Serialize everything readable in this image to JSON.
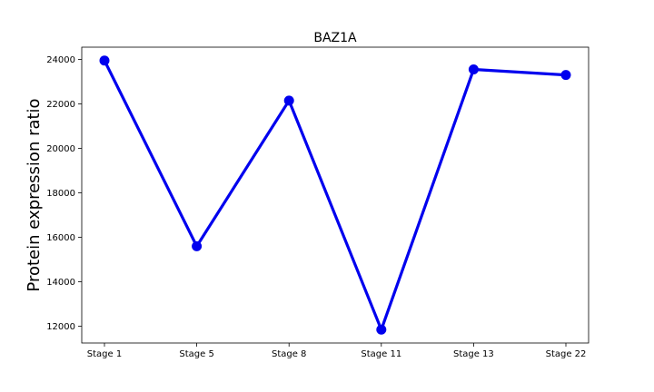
{
  "chart_data": {
    "type": "line",
    "title": "BAZ1A",
    "xlabel": "",
    "ylabel": "Protein expression ratio",
    "categories": [
      "Stage 1",
      "Stage 5",
      "Stage 8",
      "Stage 11",
      "Stage 13",
      "Stage 22"
    ],
    "series": [
      {
        "values": [
          23950,
          15600,
          22150,
          11850,
          23550,
          23300
        ],
        "color": "#0000ee"
      }
    ],
    "ylim": [
      11250,
      24550
    ],
    "yticks": [
      12000,
      14000,
      16000,
      18000,
      20000,
      22000,
      24000
    ],
    "grid": false,
    "legend": "none"
  }
}
